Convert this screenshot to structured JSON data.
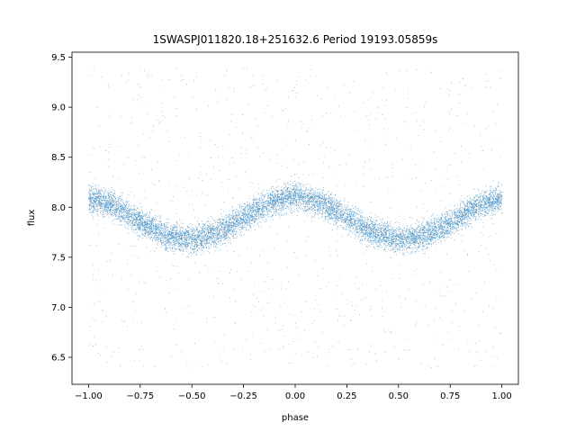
{
  "chart_data": {
    "type": "scatter",
    "title": "1SWASPJ011820.18+251632.6 Period 19193.05859s",
    "xlabel": "phase",
    "ylabel": "flux",
    "xlim": [
      -1.08,
      1.08
    ],
    "ylim": [
      6.23,
      9.55
    ],
    "x_ticks": [
      -1.0,
      -0.75,
      -0.5,
      -0.25,
      0.0,
      0.25,
      0.5,
      0.75,
      1.0
    ],
    "x_tick_labels": [
      "−1.00",
      "−0.75",
      "−0.50",
      "−0.25",
      "0.00",
      "0.25",
      "0.50",
      "0.75",
      "1.00"
    ],
    "y_ticks": [
      6.5,
      7.0,
      7.5,
      8.0,
      8.5,
      9.0,
      9.5
    ],
    "y_tick_labels": [
      "6.5",
      "7.0",
      "7.5",
      "8.0",
      "8.5",
      "9.0",
      "9.5"
    ],
    "grid": false,
    "marker_color": "#1f77b4",
    "series": [
      {
        "description_of_shape": "folded light curve; flux peaks near phase -1.0, 0.0, 1.0 and dips near phase -0.5 and 0.5",
        "x": [
          -1.0,
          -0.875,
          -0.75,
          -0.625,
          -0.5,
          -0.375,
          -0.25,
          -0.125,
          0.0,
          0.125,
          0.25,
          0.375,
          0.5,
          0.625,
          0.75,
          0.875,
          1.0
        ],
        "y": [
          8.1,
          8.02,
          7.85,
          7.72,
          7.68,
          7.75,
          7.9,
          8.05,
          8.12,
          8.05,
          7.9,
          7.75,
          7.68,
          7.72,
          7.85,
          8.02,
          8.1
        ],
        "scatter_width": 0.22,
        "outlier_range": [
          6.4,
          9.4
        ]
      }
    ]
  }
}
